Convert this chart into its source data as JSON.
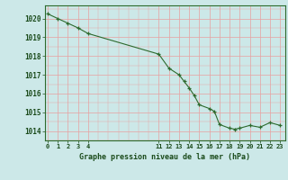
{
  "x": [
    0,
    1,
    2,
    3,
    4,
    11,
    12,
    13,
    13.5,
    14,
    14.5,
    15,
    16,
    16.5,
    17,
    18,
    18.5,
    19,
    20,
    21,
    22,
    23
  ],
  "y": [
    1020.25,
    1020.0,
    1019.75,
    1019.5,
    1019.2,
    1018.1,
    1017.35,
    1017.0,
    1016.65,
    1016.3,
    1015.9,
    1015.4,
    1015.2,
    1015.05,
    1014.35,
    1014.15,
    1014.1,
    1014.15,
    1014.3,
    1014.2,
    1014.45,
    1014.3
  ],
  "line_color": "#2d6a2d",
  "marker_color": "#2d6a2d",
  "bg_color": "#cce8e8",
  "grid_color": "#e8a0a0",
  "axis_color": "#2d6a2d",
  "text_color": "#1a4a1a",
  "xlabel": "Graphe pression niveau de la mer (hPa)",
  "ylim": [
    1013.6,
    1020.7
  ],
  "yticks": [
    1014,
    1015,
    1016,
    1017,
    1018,
    1019,
    1020
  ],
  "xticks": [
    0,
    1,
    2,
    3,
    4,
    11,
    12,
    13,
    14,
    15,
    16,
    17,
    18,
    19,
    20,
    21,
    22,
    23
  ],
  "xtick_labels": [
    "0",
    "1",
    "2",
    "3",
    "4",
    "11",
    "12",
    "13",
    "14",
    "15",
    "16",
    "17",
    "18",
    "19",
    "20",
    "21",
    "22",
    "23"
  ],
  "xlim": [
    -0.3,
    23.5
  ]
}
